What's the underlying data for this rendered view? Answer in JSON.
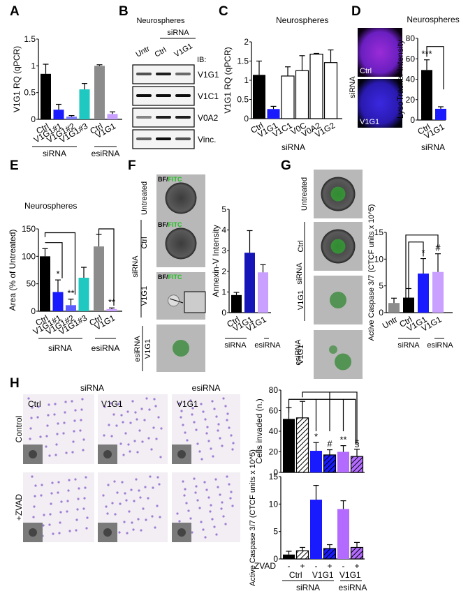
{
  "panels": {
    "A": {
      "letter": "A"
    },
    "B": {
      "letter": "B",
      "title": "Neurospheres",
      "group": "siRNA",
      "lanes": [
        "Untr",
        "Ctrl",
        "V1G1"
      ],
      "ib": "IB:",
      "bands": [
        "V1G1",
        "V1C1",
        "V0A2",
        "Vinc."
      ]
    },
    "C": {
      "letter": "C",
      "title": "Neurospheres",
      "xlabel": "siRNA"
    },
    "D": {
      "letter": "D",
      "title": "Neurospheres",
      "xlabel": "siRNA",
      "side_label": "siRNA",
      "images": [
        "Ctrl",
        "V1G1"
      ]
    },
    "E": {
      "letter": "E",
      "title": "Neurospheres"
    },
    "F": {
      "letter": "F",
      "overlay": "BF/",
      "overlay_green": "FITC",
      "row_labels": [
        "Untreated",
        "Ctrl",
        "V1G1",
        "V1G1"
      ],
      "group_labels": [
        "siRNA",
        "esiRNA"
      ]
    },
    "G": {
      "letter": "G",
      "row_labels": [
        "Untreated",
        "Ctrl",
        "V1G1",
        "V1G1"
      ],
      "group_labels": [
        "siRNA",
        "esiRNA"
      ]
    },
    "H": {
      "letter": "H",
      "col_groups": [
        "siRNA",
        "esiRNA"
      ],
      "col_labels": [
        "Ctrl",
        "V1G1",
        "V1G1"
      ],
      "row_labels": [
        "Control",
        "+ZVAD"
      ],
      "zvad_label": "ZVAD"
    }
  },
  "chart_data": [
    {
      "id": "A",
      "type": "bar",
      "title": "",
      "ylabel": "V1G1 RQ (qPCR)",
      "ylim": [
        0,
        1.5
      ],
      "yticks": [
        "0",
        "0.5",
        "1",
        "1.5"
      ],
      "categories": [
        "Ctrl",
        "V1G1#1",
        "V1G1#2",
        "V1G1#3",
        "Ctrl",
        "V1G1"
      ],
      "values": [
        0.85,
        0.18,
        0.05,
        0.56,
        1.0,
        0.1
      ],
      "errors": [
        0.18,
        0.1,
        0.02,
        0.11,
        0.02,
        0.04
      ],
      "colors": [
        "#000000",
        "#1a1aff",
        "#7a7aff",
        "#1fc8c0",
        "#8c8c8c",
        "#c9a0ff"
      ],
      "groups": [
        {
          "label": "siRNA",
          "span": [
            0,
            3
          ]
        },
        {
          "label": "esiRNA",
          "span": [
            4,
            5
          ]
        }
      ]
    },
    {
      "id": "C",
      "type": "bar",
      "title": "Neurospheres",
      "xlabel": "siRNA",
      "ylabel": "V1G1 RQ (qPCR)",
      "ylim": [
        0,
        2
      ],
      "yticks": [
        "0",
        "0.5",
        "1",
        "1.5",
        "2"
      ],
      "categories": [
        "Ctrl",
        "V1G1",
        "V1C1",
        "V0C",
        "V0A2",
        "V1G2"
      ],
      "values": [
        1.14,
        0.25,
        1.11,
        1.25,
        1.68,
        1.46
      ],
      "errors": [
        0.36,
        0.07,
        0.24,
        0.39,
        0.02,
        0.33
      ],
      "colors": [
        "#000000",
        "#1a1aff",
        "#ffffff",
        "#ffffff",
        "#ffffff",
        "#ffffff"
      ]
    },
    {
      "id": "D",
      "type": "bar",
      "title": "Neurospheres",
      "xlabel": "siRNA",
      "ylabel": "LysoTracker Intensity",
      "ylim": [
        0,
        80
      ],
      "yticks": [
        "0",
        "20",
        "40",
        "60",
        "80"
      ],
      "categories": [
        "Ctrl",
        "V1G1"
      ],
      "values": [
        49,
        11
      ],
      "errors": [
        10,
        2
      ],
      "colors": [
        "#000000",
        "#1a1aff"
      ],
      "annotations": [
        "***"
      ]
    },
    {
      "id": "E",
      "type": "bar",
      "title": "Neurospheres",
      "ylabel": "Area (% of Untreated)",
      "ylim": [
        0,
        150
      ],
      "yticks": [
        "0",
        "50",
        "100",
        "150"
      ],
      "categories": [
        "Ctrl",
        "V1G1#1",
        "V1G1#2",
        "V1G1#3",
        "Ctrl",
        "V1G1"
      ],
      "values": [
        100,
        35,
        11,
        61,
        118,
        4
      ],
      "errors": [
        14,
        22,
        11,
        19,
        22,
        2
      ],
      "colors": [
        "#000000",
        "#1a1aff",
        "#5c5cff",
        "#1fc8c0",
        "#8c8c8c",
        "#c9a0ff"
      ],
      "annotations": [
        "",
        "*",
        "**",
        "",
        "",
        "**"
      ],
      "groups": [
        {
          "label": "siRNA",
          "span": [
            0,
            3
          ]
        },
        {
          "label": "esiRNA",
          "span": [
            4,
            5
          ]
        }
      ]
    },
    {
      "id": "F",
      "type": "bar",
      "ylabel": "Annexin-V Intensity",
      "ylim": [
        0,
        5
      ],
      "yticks": [
        "0",
        "1",
        "2",
        "3",
        "4",
        "5"
      ],
      "categories": [
        "Ctrl",
        "V1G1",
        "V1G1"
      ],
      "values": [
        0.85,
        2.9,
        1.95
      ],
      "errors": [
        0.13,
        1.07,
        0.37
      ],
      "colors": [
        "#000000",
        "#1515b8",
        "#c9a0ff"
      ],
      "groups": [
        {
          "label": "siRNA",
          "span": [
            0,
            1
          ]
        },
        {
          "label": "esiRNA",
          "span": [
            2,
            2
          ]
        }
      ]
    },
    {
      "id": "G",
      "type": "bar",
      "ylabel": "Active Caspase 3/7 (CTCF units x 10^5)",
      "ylim": [
        0,
        15
      ],
      "yticks": [
        "0",
        "5",
        "10",
        "15"
      ],
      "categories": [
        "Untr",
        "Ctrl",
        "V1G1",
        "V1G1"
      ],
      "values": [
        1.8,
        2.8,
        7.3,
        7.6
      ],
      "errors": [
        0.9,
        1.7,
        2.8,
        3.4
      ],
      "colors": [
        "#8c8c8c",
        "#000000",
        "#1a1aff",
        "#c9a0ff"
      ],
      "annotations": [
        "",
        "",
        "*",
        "#"
      ],
      "groups": [
        {
          "label": "siRNA",
          "span": [
            1,
            2
          ]
        },
        {
          "label": "esiRNA",
          "span": [
            3,
            3
          ]
        }
      ]
    },
    {
      "id": "H-top",
      "type": "bar",
      "ylabel": "Cells invaded (n.)",
      "ylim": [
        0,
        80
      ],
      "yticks": [
        "0",
        "20",
        "40",
        "60",
        "80"
      ],
      "categories": [
        "Ctrl -",
        "Ctrl +",
        "V1G1 -",
        "V1G1 +",
        "esiV1G1 -",
        "esiV1G1 +"
      ],
      "values": [
        52,
        53,
        21,
        17,
        20,
        15.5
      ],
      "errors": [
        11,
        16,
        8,
        5,
        6,
        7
      ],
      "colors": [
        "#000000",
        "#ffffff",
        "#1a1aff",
        "#1a1aff",
        "#b36bff",
        "#b36bff"
      ],
      "hatched": [
        false,
        true,
        false,
        true,
        false,
        true
      ],
      "annotations": [
        "",
        "",
        "*",
        "#",
        "**",
        "§"
      ]
    },
    {
      "id": "H-bottom",
      "type": "bar",
      "ylabel": "Active Caspase 3/7 (CTCF units x 10^5)",
      "ylim": [
        0,
        15
      ],
      "yticks": [
        "0",
        "5",
        "10",
        "15"
      ],
      "categories": [
        "Ctrl -",
        "Ctrl +",
        "V1G1 -",
        "V1G1 +",
        "esiV1G1 -",
        "esiV1G1 +"
      ],
      "values": [
        0.8,
        1.5,
        10.8,
        1.9,
        9.1,
        2.1
      ],
      "errors": [
        0.6,
        0.6,
        2.6,
        0.7,
        1.5,
        0.9
      ],
      "colors": [
        "#000000",
        "#ffffff",
        "#1a1aff",
        "#1a1aff",
        "#b36bff",
        "#b36bff"
      ],
      "hatched": [
        false,
        true,
        false,
        true,
        false,
        true
      ],
      "zvad": [
        "-",
        "+",
        "-",
        "+",
        "-",
        "+"
      ],
      "xgroups": [
        "Ctrl",
        "V1G1",
        "V1G1"
      ],
      "groups": [
        {
          "label": "siRNA",
          "span": [
            0,
            3
          ]
        },
        {
          "label": "esiRNA",
          "span": [
            4,
            5
          ]
        }
      ]
    }
  ]
}
